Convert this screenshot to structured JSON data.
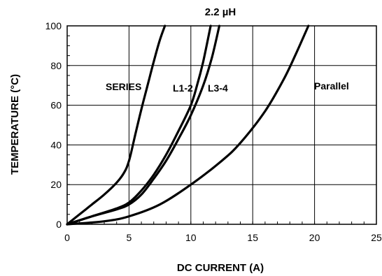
{
  "chart_data": {
    "type": "line",
    "title": "2.2 µH",
    "xlabel": "DC CURRENT (A)",
    "ylabel": "TEMPERATURE (°C)",
    "xlim": [
      0,
      25
    ],
    "ylim": [
      0,
      100
    ],
    "xticks": [
      0,
      5,
      10,
      15,
      20,
      25
    ],
    "yticks": [
      0,
      20,
      40,
      60,
      80,
      100
    ],
    "xtick_labels": [
      "0",
      "5",
      "10",
      "15",
      "20",
      "25"
    ],
    "ytick_labels": [
      "0",
      "20",
      "40",
      "60",
      "80",
      "100"
    ],
    "grid": true,
    "series": [
      {
        "name": "SERIES",
        "x": [
          0,
          1,
          2,
          3,
          4,
          4.6,
          5,
          5.5,
          6,
          6.5,
          7,
          7.5,
          7.9
        ],
        "y": [
          0,
          5,
          10,
          15,
          21,
          26,
          32,
          45,
          58,
          70,
          82,
          93,
          100
        ]
      },
      {
        "name": "L1-2",
        "x": [
          0,
          2,
          4,
          5,
          6,
          7,
          8,
          9,
          10,
          10.5,
          11,
          11.6
        ],
        "y": [
          0,
          4,
          8,
          11,
          17,
          25,
          35,
          47,
          60,
          70,
          82,
          100
        ]
      },
      {
        "name": "L3-4",
        "x": [
          0,
          2,
          4,
          5,
          6,
          7,
          8,
          9,
          10,
          11,
          11.7,
          12.3
        ],
        "y": [
          0,
          4,
          7.5,
          10,
          15,
          23,
          32,
          43,
          55,
          70,
          84,
          100
        ]
      },
      {
        "name": "Parallel",
        "x": [
          0,
          3,
          5,
          7.5,
          10,
          12.5,
          14,
          16,
          17.5,
          18.5,
          19.5
        ],
        "y": [
          0,
          1.5,
          4,
          10,
          20,
          32,
          41,
          57,
          73,
          86,
          100
        ]
      }
    ]
  }
}
